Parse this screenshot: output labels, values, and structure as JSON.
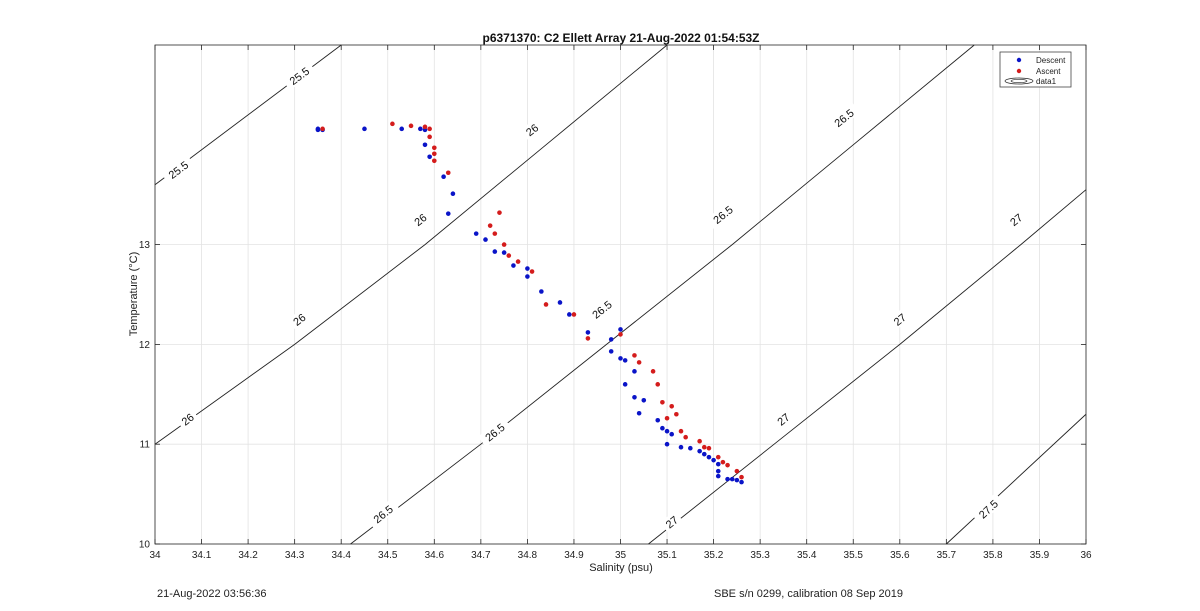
{
  "chart_data": {
    "type": "scatter",
    "title": "p6371370: C2 Ellett Array 21-Aug-2022 01:54:53Z",
    "xlabel": "Salinity (psu)",
    "ylabel": "Temperature (°C)",
    "xlim": [
      34,
      36
    ],
    "ylim": [
      10,
      15
    ],
    "x_ticks": [
      "34",
      "34.1",
      "34.2",
      "34.3",
      "34.4",
      "34.5",
      "34.6",
      "34.7",
      "34.8",
      "34.9",
      "35",
      "35.1",
      "35.2",
      "35.3",
      "35.4",
      "35.5",
      "35.6",
      "35.7",
      "35.8",
      "35.9",
      "36"
    ],
    "y_ticks": [
      "10",
      "11",
      "12",
      "13"
    ],
    "grid": true,
    "legend": {
      "position": "top-right",
      "entries": [
        "Descent",
        "Ascent",
        "data1"
      ]
    },
    "colors": {
      "descent": "#0a14c8",
      "ascent": "#d41c1c",
      "contour": "#222222"
    },
    "contours": [
      {
        "label": "25.5",
        "points": [
          [
            34.0,
            13.6
          ],
          [
            34.4,
            15.0
          ]
        ],
        "label_positions": [
          [
            34.05,
            13.75
          ],
          [
            34.31,
            14.69
          ]
        ]
      },
      {
        "label": "26",
        "points": [
          [
            34.0,
            11.0
          ],
          [
            34.3,
            12.0
          ],
          [
            34.58,
            13.0
          ],
          [
            34.84,
            14.0
          ],
          [
            35.1,
            15.0
          ]
        ],
        "label_positions": [
          [
            34.07,
            11.25
          ],
          [
            34.31,
            12.25
          ],
          [
            34.57,
            13.25
          ],
          [
            34.81,
            14.15
          ]
        ]
      },
      {
        "label": "26.5",
        "points": [
          [
            34.42,
            10.0
          ],
          [
            34.7,
            11.0
          ],
          [
            34.97,
            12.0
          ],
          [
            35.24,
            13.0
          ],
          [
            35.5,
            14.0
          ],
          [
            35.76,
            15.0
          ]
        ],
        "label_positions": [
          [
            34.49,
            10.3
          ],
          [
            34.73,
            11.12
          ],
          [
            34.96,
            12.35
          ],
          [
            35.22,
            13.3
          ],
          [
            35.48,
            14.27
          ]
        ]
      },
      {
        "label": "27",
        "points": [
          [
            35.06,
            10.0
          ],
          [
            35.33,
            11.0
          ],
          [
            35.6,
            12.0
          ],
          [
            35.86,
            13.0
          ],
          [
            36.0,
            13.55
          ]
        ],
        "label_positions": [
          [
            35.11,
            10.22
          ],
          [
            35.35,
            11.25
          ],
          [
            35.6,
            12.25
          ],
          [
            35.85,
            13.25
          ]
        ]
      },
      {
        "label": "27.5",
        "points": [
          [
            35.7,
            10.0
          ],
          [
            36.0,
            11.3
          ]
        ],
        "label_positions": [
          [
            35.79,
            10.35
          ]
        ]
      }
    ],
    "series": [
      {
        "name": "Descent",
        "marker": "dot",
        "points": [
          [
            34.35,
            14.16
          ],
          [
            34.35,
            14.15
          ],
          [
            34.36,
            14.15
          ],
          [
            34.45,
            14.16
          ],
          [
            34.53,
            14.16
          ],
          [
            34.57,
            14.16
          ],
          [
            34.58,
            14.15
          ],
          [
            34.58,
            14.0
          ],
          [
            34.59,
            13.88
          ],
          [
            34.62,
            13.68
          ],
          [
            34.64,
            13.51
          ],
          [
            34.63,
            13.31
          ],
          [
            34.69,
            13.11
          ],
          [
            34.71,
            13.05
          ],
          [
            34.73,
            12.93
          ],
          [
            34.75,
            12.92
          ],
          [
            34.77,
            12.79
          ],
          [
            34.8,
            12.76
          ],
          [
            34.8,
            12.68
          ],
          [
            34.83,
            12.53
          ],
          [
            34.87,
            12.42
          ],
          [
            34.89,
            12.3
          ],
          [
            34.93,
            12.12
          ],
          [
            34.98,
            12.05
          ],
          [
            34.98,
            11.93
          ],
          [
            35.0,
            12.15
          ],
          [
            35.0,
            11.86
          ],
          [
            35.01,
            11.84
          ],
          [
            35.03,
            11.73
          ],
          [
            35.01,
            11.6
          ],
          [
            35.03,
            11.47
          ],
          [
            35.05,
            11.44
          ],
          [
            35.04,
            11.31
          ],
          [
            35.08,
            11.24
          ],
          [
            35.09,
            11.16
          ],
          [
            35.1,
            11.13
          ],
          [
            35.11,
            11.1
          ],
          [
            35.1,
            11.0
          ],
          [
            35.13,
            10.97
          ],
          [
            35.15,
            10.96
          ],
          [
            35.17,
            10.93
          ],
          [
            35.18,
            10.9
          ],
          [
            35.19,
            10.87
          ],
          [
            35.2,
            10.84
          ],
          [
            35.21,
            10.8
          ],
          [
            35.21,
            10.73
          ],
          [
            35.21,
            10.68
          ],
          [
            35.23,
            10.65
          ],
          [
            35.24,
            10.65
          ],
          [
            35.25,
            10.64
          ],
          [
            35.26,
            10.62
          ]
        ]
      },
      {
        "name": "Ascent",
        "marker": "dot",
        "points": [
          [
            34.36,
            14.16
          ],
          [
            34.51,
            14.21
          ],
          [
            34.55,
            14.19
          ],
          [
            34.58,
            14.18
          ],
          [
            34.59,
            14.16
          ],
          [
            34.59,
            14.08
          ],
          [
            34.6,
            13.97
          ],
          [
            34.6,
            13.91
          ],
          [
            34.6,
            13.84
          ],
          [
            34.63,
            13.72
          ],
          [
            34.72,
            13.19
          ],
          [
            34.74,
            13.32
          ],
          [
            34.73,
            13.11
          ],
          [
            34.75,
            13.0
          ],
          [
            34.76,
            12.89
          ],
          [
            34.78,
            12.83
          ],
          [
            34.81,
            12.73
          ],
          [
            34.84,
            12.4
          ],
          [
            34.9,
            12.3
          ],
          [
            34.93,
            12.06
          ],
          [
            35.0,
            12.1
          ],
          [
            35.03,
            11.89
          ],
          [
            35.04,
            11.82
          ],
          [
            35.07,
            11.73
          ],
          [
            35.08,
            11.6
          ],
          [
            35.09,
            11.42
          ],
          [
            35.1,
            11.26
          ],
          [
            35.11,
            11.38
          ],
          [
            35.12,
            11.3
          ],
          [
            35.13,
            11.13
          ],
          [
            35.14,
            11.07
          ],
          [
            35.17,
            11.03
          ],
          [
            35.18,
            10.97
          ],
          [
            35.19,
            10.96
          ],
          [
            35.21,
            10.87
          ],
          [
            35.22,
            10.82
          ],
          [
            35.23,
            10.79
          ],
          [
            35.25,
            10.73
          ],
          [
            35.26,
            10.67
          ]
        ]
      }
    ]
  },
  "footer": {
    "timestamp": "21-Aug-2022 03:56:36",
    "sensor": "SBE s/n 0299, calibration 08 Sep 2019"
  }
}
